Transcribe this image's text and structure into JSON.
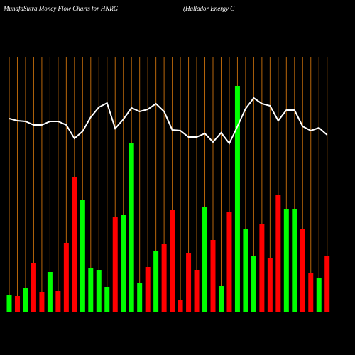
{
  "chart_data": {
    "type": "bar",
    "title": "MunafaSutra  Money Flow  Charts for HNRG",
    "subtitle": "(Hallador Energy C",
    "ylim": [
      0,
      360
    ],
    "y2lim": [
      0,
      360
    ],
    "grid": true,
    "grid_color": "#b8660b",
    "series": [
      {
        "type": "bar",
        "values": [
          25,
          23,
          35,
          70,
          29,
          57,
          30,
          98,
          191,
          158,
          63,
          60,
          36,
          135,
          137,
          239,
          42,
          64,
          87,
          96,
          144,
          18,
          83,
          60,
          148,
          102,
          37,
          141,
          319,
          117,
          79,
          125,
          77,
          166,
          145,
          145,
          118,
          55,
          49,
          80
        ],
        "colors": [
          "#00ff00",
          "#ff0000",
          "#00ff00",
          "#ff0000",
          "#ff0000",
          "#00ff00",
          "#ff0000",
          "#ff0000",
          "#ff0000",
          "#00ff00",
          "#00ff00",
          "#00ff00",
          "#00ff00",
          "#ff0000",
          "#00ff00",
          "#00ff00",
          "#00ff00",
          "#ff0000",
          "#00ff00",
          "#ff0000",
          "#ff0000",
          "#ff0000",
          "#ff0000",
          "#ff0000",
          "#00ff00",
          "#ff0000",
          "#00ff00",
          "#ff0000",
          "#00ff00",
          "#00ff00",
          "#00ff00",
          "#ff0000",
          "#ff0000",
          "#ff0000",
          "#00ff00",
          "#00ff00",
          "#ff0000",
          "#ff0000",
          "#00ff00",
          "#ff0000"
        ]
      },
      {
        "type": "line",
        "axis": "y2",
        "color": "#ffffff",
        "values": [
          273,
          270,
          269,
          264,
          264,
          269,
          269,
          264,
          245,
          255,
          275,
          289,
          295,
          259,
          272,
          288,
          283,
          286,
          294,
          283,
          257,
          256,
          247,
          247,
          252,
          240,
          253,
          238,
          262,
          287,
          302,
          294,
          291,
          270,
          285,
          285,
          262,
          256,
          260,
          250
        ]
      }
    ]
  }
}
